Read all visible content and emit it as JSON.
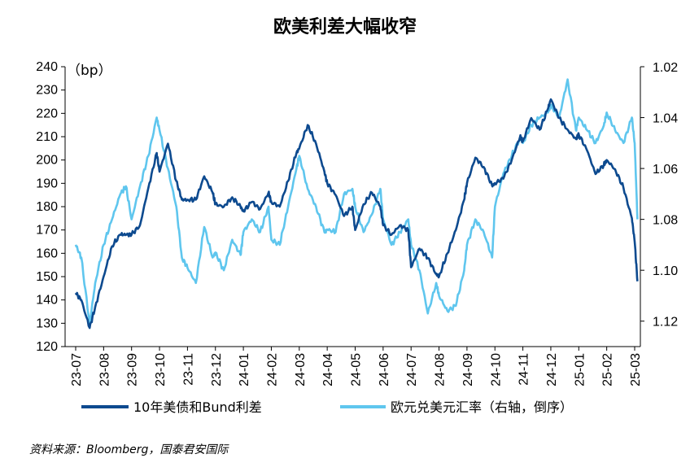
{
  "chart_data": {
    "type": "line",
    "title": "欧美利差大幅收窄",
    "y_unit_label": "（bp）",
    "source": "资料来源：Bloomberg，国泰君安国际",
    "x_labels": [
      "23-07",
      "23-08",
      "23-09",
      "23-10",
      "23-11",
      "23-12",
      "24-01",
      "24-02",
      "24-03",
      "24-04",
      "24-05",
      "24-06",
      "24-07",
      "24-08",
      "24-09",
      "24-10",
      "24-11",
      "24-12",
      "25-01",
      "25-02",
      "25-03"
    ],
    "left_axis": {
      "min": 120,
      "max": 240,
      "ticks": [
        120,
        130,
        140,
        150,
        160,
        170,
        180,
        190,
        200,
        210,
        220,
        230,
        240
      ]
    },
    "right_axis": {
      "min": 1.02,
      "max": 1.13,
      "inverted": true,
      "tick_values": [
        1.02,
        1.04,
        1.06,
        1.08,
        1.1,
        1.12
      ],
      "tick_labels": [
        "1.02",
        "1.04",
        "1.06",
        "1.08",
        "1.10",
        "1.12"
      ]
    },
    "grid": false,
    "legend_position": "bottom",
    "series": [
      {
        "name": "10年美债和Bund利差",
        "axis": "left",
        "color": "#0d4a8f",
        "x": [
          0,
          0.2,
          0.5,
          0.7,
          1,
          1.3,
          1.6,
          1.8,
          2,
          2.3,
          2.6,
          2.9,
          3,
          3.3,
          3.6,
          3.8,
          4,
          4.3,
          4.6,
          4.9,
          5,
          5.3,
          5.6,
          5.9,
          6,
          6.3,
          6.6,
          6.9,
          7,
          7.3,
          7.6,
          7.9,
          8,
          8.3,
          8.6,
          8.9,
          9,
          9.3,
          9.6,
          9.9,
          10,
          10.3,
          10.6,
          10.9,
          11,
          11.3,
          11.6,
          11.9,
          12,
          12.3,
          12.6,
          12.9,
          13,
          13.3,
          13.6,
          13.9,
          14,
          14.3,
          14.6,
          14.9,
          15,
          15.3,
          15.6,
          15.9,
          16,
          16.3,
          16.6,
          16.9,
          17,
          17.3,
          17.6,
          17.9,
          18,
          18.3,
          18.6,
          18.9,
          19,
          19.3,
          19.6,
          19.9,
          20,
          20.1
        ],
        "y": [
          143,
          140,
          128,
          137,
          150,
          163,
          168,
          168,
          168,
          172,
          188,
          203,
          195,
          207,
          191,
          183,
          183,
          183,
          193,
          186,
          181,
          180,
          184,
          180,
          178,
          182,
          179,
          186,
          182,
          180,
          191,
          203,
          205,
          215,
          207,
          195,
          190,
          185,
          176,
          180,
          170,
          181,
          186,
          180,
          172,
          168,
          172,
          170,
          154,
          162,
          158,
          151,
          150,
          160,
          170,
          183,
          190,
          201,
          197,
          189,
          190,
          192,
          200,
          210,
          208,
          218,
          213,
          222,
          226,
          218,
          213,
          209,
          211,
          204,
          194,
          198,
          200,
          196,
          188,
          175,
          165,
          148
        ]
      },
      {
        "name": "欧元兑美元汇率（右轴，倒序）",
        "axis": "right",
        "color": "#5fc6ee",
        "x": [
          0,
          0.2,
          0.5,
          0.7,
          1,
          1.3,
          1.6,
          1.8,
          2,
          2.3,
          2.6,
          2.9,
          3,
          3.3,
          3.6,
          3.8,
          4,
          4.3,
          4.6,
          4.9,
          5,
          5.3,
          5.6,
          5.9,
          6,
          6.3,
          6.6,
          6.9,
          7,
          7.3,
          7.6,
          7.9,
          8,
          8.3,
          8.6,
          8.9,
          9,
          9.3,
          9.6,
          9.9,
          10,
          10.3,
          10.6,
          10.9,
          11,
          11.3,
          11.6,
          11.9,
          12,
          12.3,
          12.6,
          12.9,
          13,
          13.3,
          13.6,
          13.9,
          14,
          14.3,
          14.6,
          14.9,
          15,
          15.3,
          15.6,
          15.9,
          16,
          16.3,
          16.6,
          16.9,
          17,
          17.3,
          17.6,
          17.9,
          18,
          18.3,
          18.6,
          18.9,
          19,
          19.3,
          19.6,
          19.9,
          20,
          20.1
        ],
        "y": [
          1.09,
          1.095,
          1.121,
          1.105,
          1.09,
          1.08,
          1.07,
          1.067,
          1.08,
          1.067,
          1.055,
          1.04,
          1.045,
          1.06,
          1.075,
          1.095,
          1.099,
          1.105,
          1.083,
          1.095,
          1.093,
          1.1,
          1.088,
          1.094,
          1.085,
          1.08,
          1.085,
          1.075,
          1.088,
          1.09,
          1.075,
          1.06,
          1.055,
          1.068,
          1.075,
          1.085,
          1.084,
          1.085,
          1.07,
          1.068,
          1.075,
          1.085,
          1.078,
          1.068,
          1.08,
          1.09,
          1.085,
          1.08,
          1.09,
          1.1,
          1.117,
          1.105,
          1.11,
          1.116,
          1.114,
          1.1,
          1.09,
          1.08,
          1.085,
          1.095,
          1.075,
          1.062,
          1.055,
          1.048,
          1.05,
          1.043,
          1.04,
          1.038,
          1.035,
          1.04,
          1.025,
          1.045,
          1.04,
          1.045,
          1.05,
          1.043,
          1.038,
          1.045,
          1.05,
          1.04,
          1.05,
          1.08
        ]
      }
    ]
  }
}
